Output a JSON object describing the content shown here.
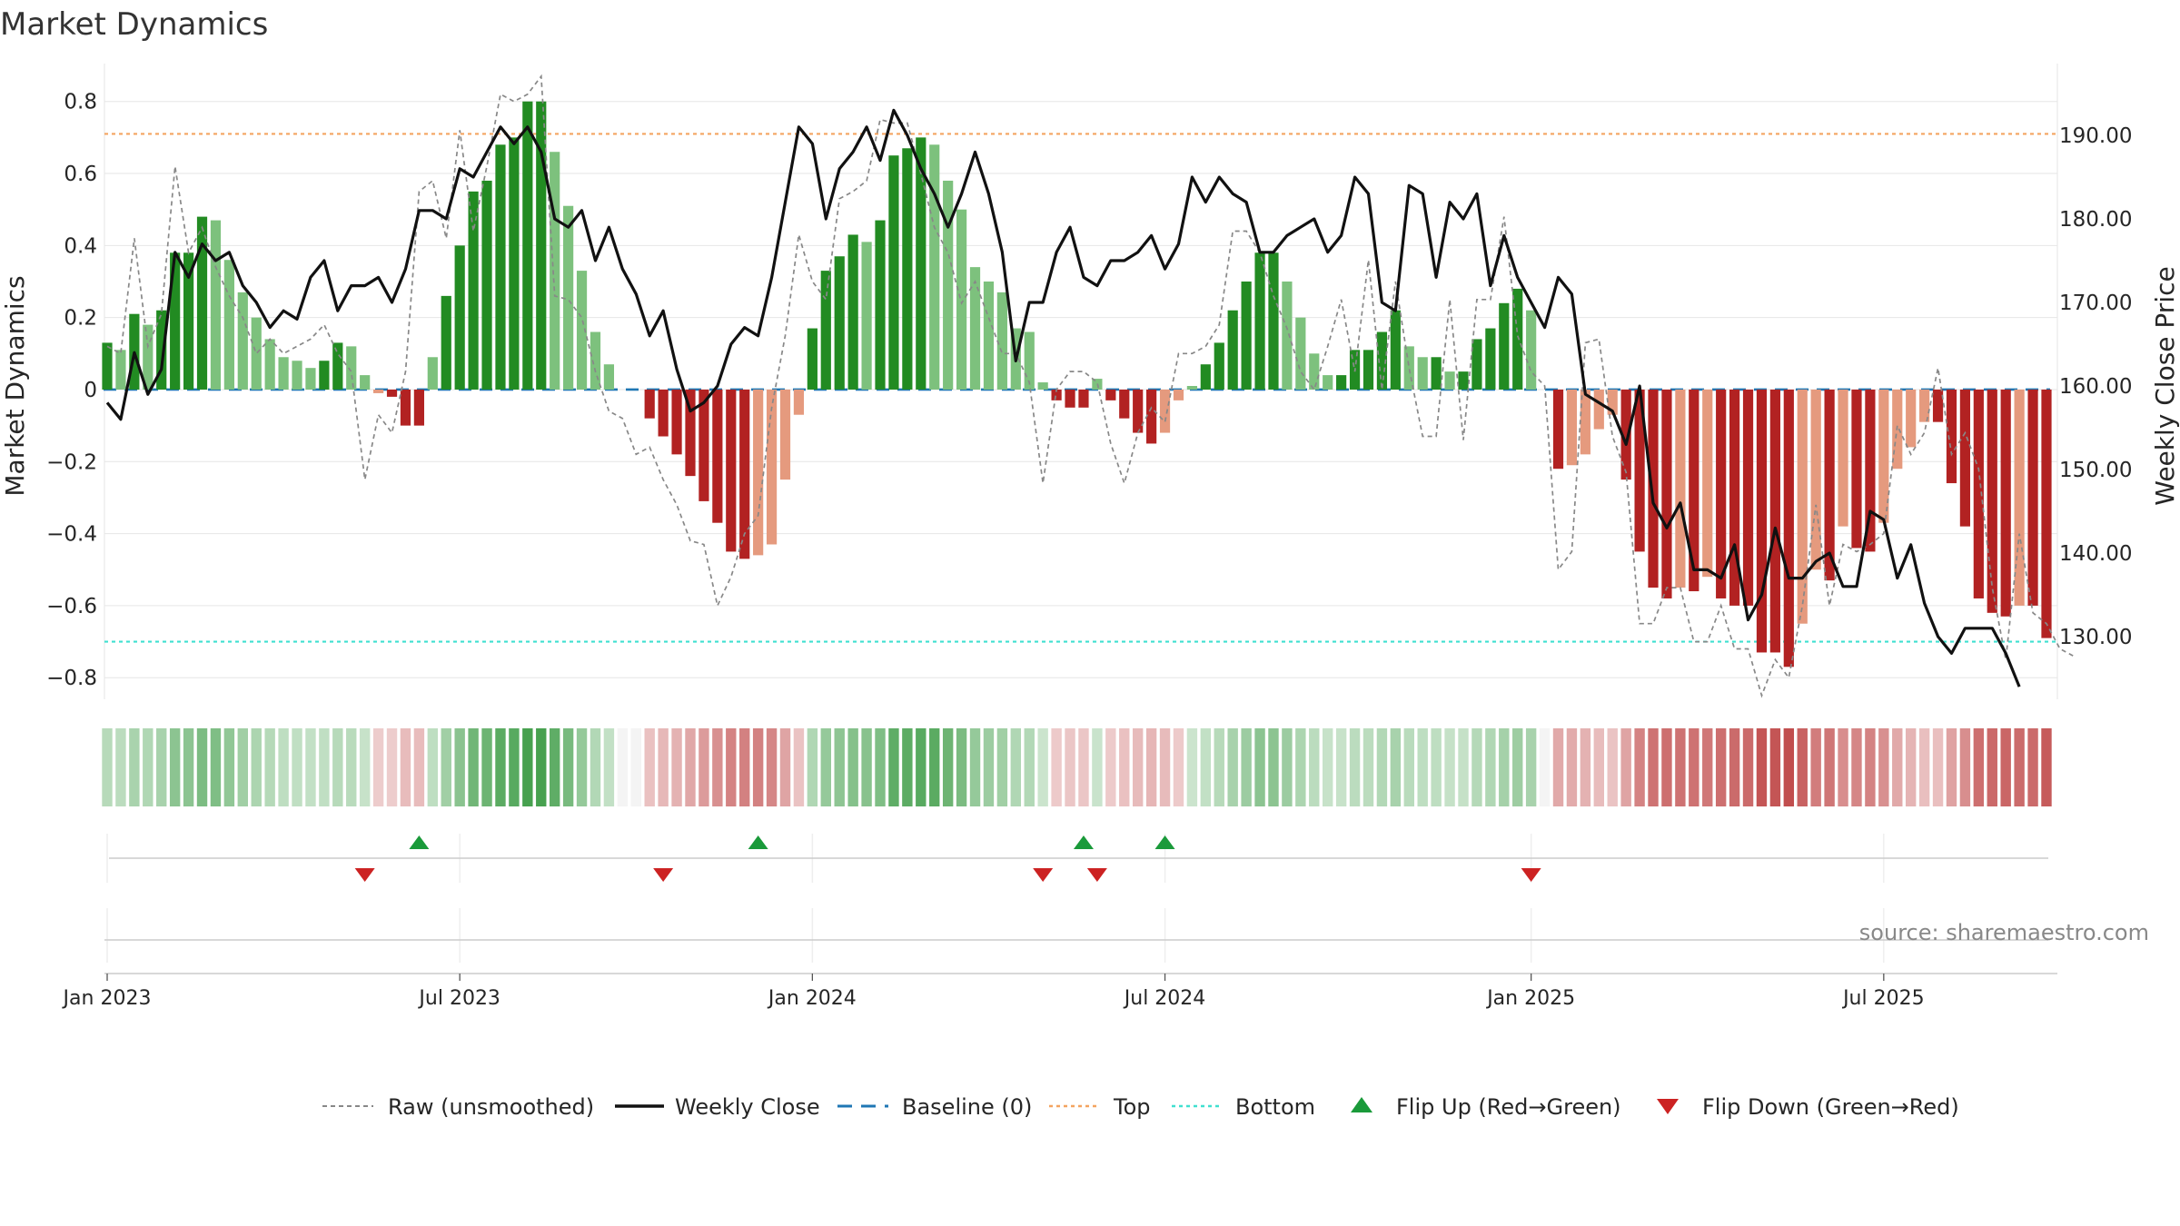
{
  "chart_data": {
    "type": "bar",
    "title": "Market Dynamics",
    "ylabel_left": "Market Dynamics",
    "ylabel_right": "Weekly Close Price",
    "ylim_left": [
      -0.86,
      0.88
    ],
    "ylim_right": [
      122.5,
      197.5
    ],
    "yticks_left": [
      "0.8",
      "0.6",
      "0.4",
      "0.2",
      "0",
      "−0.2",
      "−0.4",
      "−0.6",
      "−0.8"
    ],
    "yticks_left_values": [
      0.8,
      0.6,
      0.4,
      0.2,
      0,
      -0.2,
      -0.4,
      -0.6,
      -0.8
    ],
    "yticks_right": [
      "190.00",
      "180.00",
      "170.00",
      "160.00",
      "150.00",
      "140.00",
      "130.00"
    ],
    "yticks_right_values": [
      190,
      180,
      170,
      160,
      150,
      140,
      130
    ],
    "xticks": [
      "Jan 2023",
      "Jul 2023",
      "Jan 2024",
      "Jul 2024",
      "Jan 2025",
      "Jul 2025"
    ],
    "x_start": "2023-01-02",
    "x_interval_days": 7,
    "top_level": 0.71,
    "bottom_level": -0.7,
    "grid": true,
    "colors": {
      "strong_green": "#228b22",
      "light_green": "#7dc17d",
      "strong_red": "#b22222",
      "light_red": "#e59a7e",
      "close": "#111111",
      "raw": "#888888",
      "baseline": "#1f77b4",
      "top": "#f4a460",
      "bottom": "#40e0d0",
      "flip_up": "#1a9a3a",
      "flip_down": "#cc2222"
    },
    "series": [
      {
        "name": "Market Dynamics",
        "values": [
          0.13,
          0.11,
          0.21,
          0.18,
          0.22,
          0.38,
          0.38,
          0.48,
          0.47,
          0.36,
          0.27,
          0.2,
          0.14,
          0.09,
          0.08,
          0.06,
          0.08,
          0.13,
          0.12,
          0.04,
          -0.01,
          -0.02,
          -0.1,
          -0.1,
          0.09,
          0.26,
          0.4,
          0.55,
          0.58,
          0.68,
          0.7,
          0.8,
          0.8,
          0.66,
          0.51,
          0.33,
          0.16,
          0.07,
          0,
          0,
          -0.08,
          -0.13,
          -0.18,
          -0.24,
          -0.31,
          -0.37,
          -0.45,
          -0.47,
          -0.46,
          -0.43,
          -0.25,
          -0.07,
          0.17,
          0.33,
          0.37,
          0.43,
          0.41,
          0.47,
          0.65,
          0.67,
          0.7,
          0.68,
          0.58,
          0.5,
          0.34,
          0.3,
          0.27,
          0.17,
          0.16,
          0.02,
          -0.03,
          -0.05,
          -0.05,
          0.03,
          -0.03,
          -0.08,
          -0.12,
          -0.15,
          -0.12,
          -0.03,
          0.01,
          0.07,
          0.13,
          0.22,
          0.3,
          0.38,
          0.38,
          0.3,
          0.2,
          0.1,
          0.04,
          0.04,
          0.11,
          0.11,
          0.16,
          0.22,
          0.12,
          0.09,
          0.09,
          0.05,
          0.05,
          0.14,
          0.17,
          0.24,
          0.28,
          0.22,
          0,
          -0.22,
          -0.21,
          -0.18,
          -0.11,
          -0.07,
          -0.25,
          -0.45,
          -0.55,
          -0.58,
          -0.55,
          -0.56,
          -0.52,
          -0.58,
          -0.6,
          -0.6,
          -0.73,
          -0.73,
          -0.77,
          -0.65,
          -0.5,
          -0.53,
          -0.38,
          -0.44,
          -0.45,
          -0.37,
          -0.22,
          -0.16,
          -0.09,
          -0.09,
          -0.26,
          -0.38,
          -0.58,
          -0.62,
          -0.63,
          -0.6,
          -0.6,
          -0.69
        ]
      },
      {
        "name": "Raw (unsmoothed)",
        "values": [
          0.12,
          0.1,
          0.42,
          0.12,
          0.21,
          0.62,
          0.38,
          0.45,
          0.34,
          0.26,
          0.2,
          0.1,
          0.14,
          0.1,
          0.12,
          0.14,
          0.18,
          0.1,
          0.05,
          -0.25,
          -0.07,
          -0.12,
          0.05,
          0.55,
          0.58,
          0.42,
          0.72,
          0.44,
          0.62,
          0.82,
          0.8,
          0.82,
          0.87,
          0.26,
          0.25,
          0.2,
          0.05,
          -0.06,
          -0.08,
          -0.18,
          -0.16,
          -0.25,
          -0.32,
          -0.42,
          -0.43,
          -0.6,
          -0.52,
          -0.4,
          -0.35,
          -0.05,
          0.15,
          0.43,
          0.3,
          0.25,
          0.53,
          0.55,
          0.58,
          0.75,
          0.74,
          0.74,
          0.6,
          0.45,
          0.38,
          0.24,
          0.3,
          0.2,
          0.1,
          0.1,
          0.02,
          -0.26,
          0.0,
          0.05,
          0.05,
          0.02,
          -0.15,
          -0.26,
          -0.12,
          -0.05,
          -0.09,
          0.1,
          0.1,
          0.12,
          0.18,
          0.44,
          0.44,
          0.38,
          0.26,
          0.17,
          0.05,
          0.0,
          0.12,
          0.25,
          0.05,
          0.36,
          0.0,
          0.3,
          0.06,
          -0.13,
          -0.13,
          0.25,
          -0.14,
          0.25,
          0.25,
          0.48,
          0.15,
          0.05,
          0.01,
          -0.5,
          -0.45,
          0.13,
          0.14,
          -0.13,
          -0.23,
          -0.65,
          -0.65,
          -0.55,
          -0.55,
          -0.7,
          -0.7,
          -0.6,
          -0.72,
          -0.72,
          -0.85,
          -0.75,
          -0.8,
          -0.6,
          -0.32,
          -0.6,
          -0.43,
          -0.45,
          -0.43,
          -0.4,
          -0.1,
          -0.18,
          -0.12,
          0.06,
          -0.18,
          -0.12,
          -0.22,
          -0.55,
          -0.75,
          -0.4,
          -0.62,
          -0.65,
          -0.72,
          -0.74
        ]
      },
      {
        "name": "Weekly Close",
        "values": [
          158,
          156,
          164,
          159,
          162,
          176,
          173,
          177,
          175,
          176,
          172,
          170,
          167,
          169,
          168,
          173,
          175,
          169,
          172,
          172,
          173,
          170,
          174,
          181,
          181,
          180,
          186,
          185,
          188,
          191,
          189,
          191,
          188,
          180,
          179,
          181,
          175,
          179,
          174,
          171,
          166,
          169,
          162,
          157,
          158,
          160,
          165,
          167,
          166,
          173,
          182,
          191,
          189,
          180,
          186,
          188,
          191,
          187,
          193,
          190,
          186,
          183,
          179,
          183,
          188,
          183,
          176,
          163,
          170,
          170,
          176,
          179,
          173,
          172,
          175,
          175,
          176,
          178,
          174,
          177,
          185,
          182,
          185,
          183,
          182,
          176,
          176,
          178,
          179,
          180,
          176,
          178,
          185,
          183,
          170,
          169,
          184,
          183,
          173,
          182,
          180,
          183,
          172,
          178,
          173,
          170,
          167,
          173,
          171,
          159,
          158,
          157,
          153,
          160,
          146,
          143,
          146,
          138,
          138,
          137,
          141,
          132,
          135,
          143,
          137,
          137,
          139,
          140,
          136,
          136,
          145,
          144,
          137,
          141,
          134,
          130,
          128,
          131,
          131,
          131,
          128,
          124
        ]
      }
    ],
    "heat_strip": [
      0.13,
      0.11,
      0.21,
      0.18,
      0.22,
      0.38,
      0.38,
      0.48,
      0.47,
      0.36,
      0.27,
      0.2,
      0.14,
      0.09,
      0.08,
      0.06,
      0.08,
      0.13,
      0.12,
      0.04,
      -0.01,
      -0.02,
      -0.1,
      -0.1,
      0.09,
      0.26,
      0.4,
      0.55,
      0.58,
      0.68,
      0.7,
      0.8,
      0.8,
      0.66,
      0.51,
      0.33,
      0.16,
      0.07,
      0,
      0,
      -0.08,
      -0.13,
      -0.18,
      -0.24,
      -0.31,
      -0.37,
      -0.45,
      -0.47,
      -0.46,
      -0.43,
      -0.25,
      -0.07,
      0.17,
      0.33,
      0.37,
      0.43,
      0.41,
      0.47,
      0.65,
      0.67,
      0.7,
      0.68,
      0.58,
      0.5,
      0.34,
      0.3,
      0.27,
      0.17,
      0.16,
      0.02,
      -0.03,
      -0.05,
      -0.05,
      0.03,
      -0.03,
      -0.08,
      -0.12,
      -0.15,
      -0.12,
      -0.03,
      0.01,
      0.07,
      0.13,
      0.22,
      0.3,
      0.38,
      0.38,
      0.3,
      0.2,
      0.1,
      0.04,
      0.04,
      0.11,
      0.11,
      0.16,
      0.22,
      0.12,
      0.09,
      0.09,
      0.05,
      0.05,
      0.14,
      0.17,
      0.24,
      0.28,
      0.22,
      0,
      -0.22,
      -0.21,
      -0.18,
      -0.11,
      -0.07,
      -0.25,
      -0.45,
      -0.55,
      -0.58,
      -0.55,
      -0.56,
      -0.52,
      -0.58,
      -0.6,
      -0.6,
      -0.73,
      -0.73,
      -0.77,
      -0.65,
      -0.5,
      -0.53,
      -0.38,
      -0.44,
      -0.45,
      -0.37,
      -0.22,
      -0.16,
      -0.09,
      -0.09,
      -0.26,
      -0.38,
      -0.58,
      -0.62,
      -0.63,
      -0.6,
      -0.6,
      -0.69
    ],
    "flip_up_dates": [
      "2023-06-12",
      "2023-12-04",
      "2024-05-20",
      "2024-07-01"
    ],
    "flip_down_dates": [
      "2023-05-15",
      "2023-10-16",
      "2024-04-29",
      "2024-05-27",
      "2025-01-06"
    ],
    "legend_position": "bottom-center",
    "legend": [
      {
        "label": "Raw (unsmoothed)",
        "kind": "raw"
      },
      {
        "label": "Weekly Close",
        "kind": "close"
      },
      {
        "label": "Baseline (0)",
        "kind": "baseline"
      },
      {
        "label": "Top",
        "kind": "top"
      },
      {
        "label": "Bottom",
        "kind": "bottom"
      },
      {
        "label": "Flip Up (Red→Green)",
        "kind": "flip_up"
      },
      {
        "label": "Flip Down (Green→Red)",
        "kind": "flip_down"
      }
    ],
    "source": "source: sharemaestro.com"
  }
}
